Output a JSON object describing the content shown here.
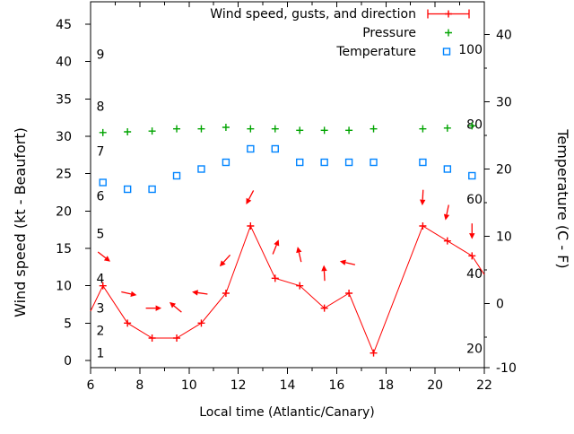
{
  "chart_data": {
    "type": "line",
    "title": "",
    "x_axis": {
      "label": "Local time (Atlantic/Canary)",
      "range": [
        6,
        22
      ],
      "major_ticks": [
        6,
        8,
        10,
        12,
        14,
        16,
        18,
        20,
        22
      ],
      "minor_tick_step": 1
    },
    "y_left_axis": {
      "label": "Wind speed (kt - Beaufort)",
      "unit": "kt",
      "range_kt": [
        0,
        48
      ],
      "major_ticks": [
        0,
        5,
        10,
        15,
        20,
        25,
        30,
        35,
        40,
        45
      ],
      "beaufort_scale_labels": [
        {
          "b": "1",
          "kt": 1
        },
        {
          "b": "2",
          "kt": 4
        },
        {
          "b": "3",
          "kt": 7
        },
        {
          "b": "4",
          "kt": 11
        },
        {
          "b": "5",
          "kt": 17
        },
        {
          "b": "6",
          "kt": 22
        },
        {
          "b": "7",
          "kt": 28
        },
        {
          "b": "8",
          "kt": 34
        },
        {
          "b": "9",
          "kt": 41
        }
      ]
    },
    "y_right_axis": {
      "label": "Temperature (C - F)",
      "unit": "C",
      "range_c": [
        -10,
        44.5
      ],
      "major_ticks_c": [
        -10,
        0,
        10,
        20,
        30,
        40
      ],
      "minor_tick_step_c": 5,
      "fahrenheit_labels": [
        {
          "f": "20",
          "c": -6.67
        },
        {
          "f": "40",
          "c": 4.44
        },
        {
          "f": "60",
          "c": 15.56
        },
        {
          "f": "80",
          "c": 26.67
        },
        {
          "f": "100",
          "c": 37.78
        }
      ]
    },
    "series": [
      {
        "name": "Wind speed, gusts, and direction",
        "type": "line",
        "marker": "plus",
        "legend_marker": "errorbar",
        "color": "#ff0000",
        "axis": "left",
        "points": [
          {
            "x": 6.5,
            "kt": 10
          },
          {
            "x": 7.5,
            "kt": 5
          },
          {
            "x": 8.5,
            "kt": 3
          },
          {
            "x": 9.5,
            "kt": 3
          },
          {
            "x": 10.5,
            "kt": 5
          },
          {
            "x": 11.5,
            "kt": 9
          },
          {
            "x": 12.5,
            "kt": 18
          },
          {
            "x": 13.5,
            "kt": 11
          },
          {
            "x": 14.5,
            "kt": 10
          },
          {
            "x": 15.5,
            "kt": 7
          },
          {
            "x": 16.5,
            "kt": 9
          },
          {
            "x": 17.5,
            "kt": 1
          },
          {
            "x": 19.5,
            "kt": 18
          },
          {
            "x": 20.5,
            "kt": 16
          },
          {
            "x": 21.5,
            "kt": 14
          }
        ],
        "edge_points": [
          {
            "x": 6,
            "kt": 6.6,
            "note": "line clipped at left plot border"
          },
          {
            "x": 22,
            "kt": 11.5,
            "note": "line clipped at right plot border"
          }
        ]
      },
      {
        "name": "Wind gust / direction arrows",
        "type": "arrows",
        "color": "#ff0000",
        "axis": "left",
        "dir_deg_convention": "degrees counterclockwise from east (screen direction the arrow points)",
        "points": [
          {
            "x": 6.5,
            "gust_kt": 14,
            "dir_deg": -38
          },
          {
            "x": 7.5,
            "gust_kt": 9,
            "dir_deg": -12
          },
          {
            "x": 8.5,
            "gust_kt": 7,
            "dir_deg": 0
          },
          {
            "x": 9.5,
            "gust_kt": 7,
            "dir_deg": 140
          },
          {
            "x": 10.5,
            "gust_kt": 9,
            "dir_deg": 172
          },
          {
            "x": 11.5,
            "gust_kt": 13.5,
            "dir_deg": -132
          },
          {
            "x": 12.5,
            "gust_kt": 22,
            "dir_deg": -118
          },
          {
            "x": 13.5,
            "gust_kt": 15,
            "dir_deg": 68
          },
          {
            "x": 14.5,
            "gust_kt": 14,
            "dir_deg": 103
          },
          {
            "x": 15.5,
            "gust_kt": 11.5,
            "dir_deg": 93
          },
          {
            "x": 16.5,
            "gust_kt": 13,
            "dir_deg": 167
          },
          {
            "x": 19.5,
            "gust_kt": 22,
            "dir_deg": -93
          },
          {
            "x": 20.5,
            "gust_kt": 20,
            "dir_deg": -102
          },
          {
            "x": 21.5,
            "gust_kt": 17.5,
            "dir_deg": -90
          }
        ]
      },
      {
        "name": "Pressure",
        "type": "points",
        "marker": "plus",
        "legend_marker": "plus",
        "color": "#00a400",
        "axis": "left",
        "y_note": "plotted height expressed in left-axis (kt) units",
        "points": [
          {
            "x": 6.5,
            "y_plot_kt": 30.5
          },
          {
            "x": 7.5,
            "y_plot_kt": 30.6
          },
          {
            "x": 8.5,
            "y_plot_kt": 30.7
          },
          {
            "x": 9.5,
            "y_plot_kt": 31.0
          },
          {
            "x": 10.5,
            "y_plot_kt": 31.0
          },
          {
            "x": 11.5,
            "y_plot_kt": 31.2
          },
          {
            "x": 12.5,
            "y_plot_kt": 31.0
          },
          {
            "x": 13.5,
            "y_plot_kt": 31.0
          },
          {
            "x": 14.5,
            "y_plot_kt": 30.8
          },
          {
            "x": 15.5,
            "y_plot_kt": 30.8
          },
          {
            "x": 16.5,
            "y_plot_kt": 30.8
          },
          {
            "x": 17.5,
            "y_plot_kt": 31.0
          },
          {
            "x": 19.5,
            "y_plot_kt": 31.0
          },
          {
            "x": 20.5,
            "y_plot_kt": 31.1
          },
          {
            "x": 21.5,
            "y_plot_kt": 31.4
          }
        ]
      },
      {
        "name": "Temperature",
        "type": "points",
        "marker": "open-square",
        "legend_marker": "open-square",
        "color": "#0084ff",
        "axis": "right",
        "points": [
          {
            "x": 6.5,
            "c": 18
          },
          {
            "x": 7.5,
            "c": 17
          },
          {
            "x": 8.5,
            "c": 17
          },
          {
            "x": 9.5,
            "c": 19
          },
          {
            "x": 10.5,
            "c": 20
          },
          {
            "x": 11.5,
            "c": 21
          },
          {
            "x": 12.5,
            "c": 23
          },
          {
            "x": 13.5,
            "c": 23
          },
          {
            "x": 14.5,
            "c": 21
          },
          {
            "x": 15.5,
            "c": 21
          },
          {
            "x": 16.5,
            "c": 21
          },
          {
            "x": 17.5,
            "c": 21
          },
          {
            "x": 19.5,
            "c": 21
          },
          {
            "x": 20.5,
            "c": 20
          },
          {
            "x": 21.5,
            "c": 19
          }
        ]
      }
    ],
    "data_gap_hours": [
      18.5
    ],
    "legend_position": "top-right-inside"
  },
  "colors": {
    "wind": "#ff0000",
    "pressure": "#00a400",
    "temperature": "#0084ff",
    "axis": "#000000",
    "background": "#ffffff"
  }
}
